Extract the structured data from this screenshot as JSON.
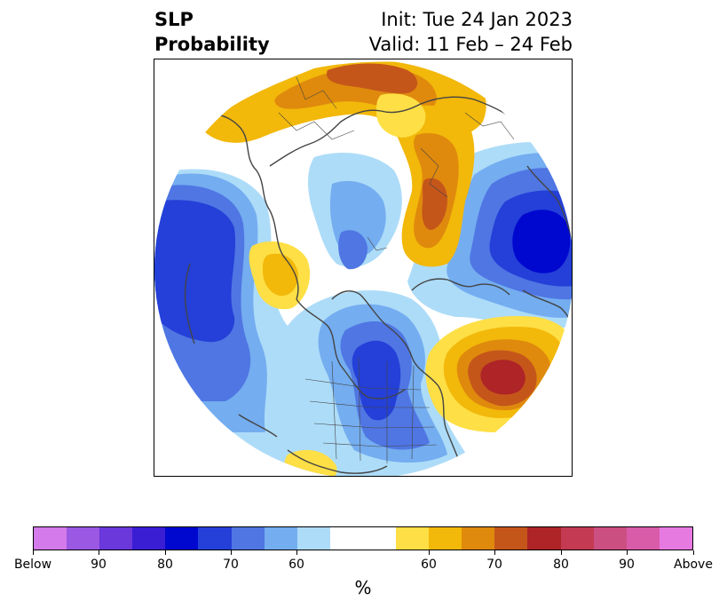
{
  "title": {
    "left_line1": "SLP",
    "left_line2": "Probability",
    "right_line1": "Init: Tue 24 Jan 2023",
    "right_line2": "Valid: 11 Feb – 24 Feb"
  },
  "colorbar": {
    "colors": [
      "#d47aea",
      "#9b58e2",
      "#6a38db",
      "#3a1ed4",
      "#0008cf",
      "#2440d8",
      "#4f76e3",
      "#74adf0",
      "#addcf8",
      "#ffffff",
      "#ffffff",
      "#fedf45",
      "#f2b80a",
      "#df8a0d",
      "#c5561a",
      "#ae2427",
      "#c33a52",
      "#cc4f82",
      "#d95ca9",
      "#e67ae1"
    ],
    "tick_labels": [
      "Below",
      "90",
      "80",
      "70",
      "60",
      "60",
      "70",
      "80",
      "90",
      "Above"
    ],
    "unit_label": "%"
  },
  "map": {
    "projection": "north-polar-stereographic",
    "colors": {
      "blue_light": "#addcf8",
      "blue_mid": "#74adf0",
      "blue_med": "#4f76e3",
      "blue_deep": "#2440d8",
      "blue_darkest": "#0008cf",
      "yellow": "#fedf45",
      "gold": "#f2b80a",
      "orange": "#df8a0d",
      "rust": "#c5561a",
      "red": "#ae2427",
      "coast": "#444444"
    }
  }
}
